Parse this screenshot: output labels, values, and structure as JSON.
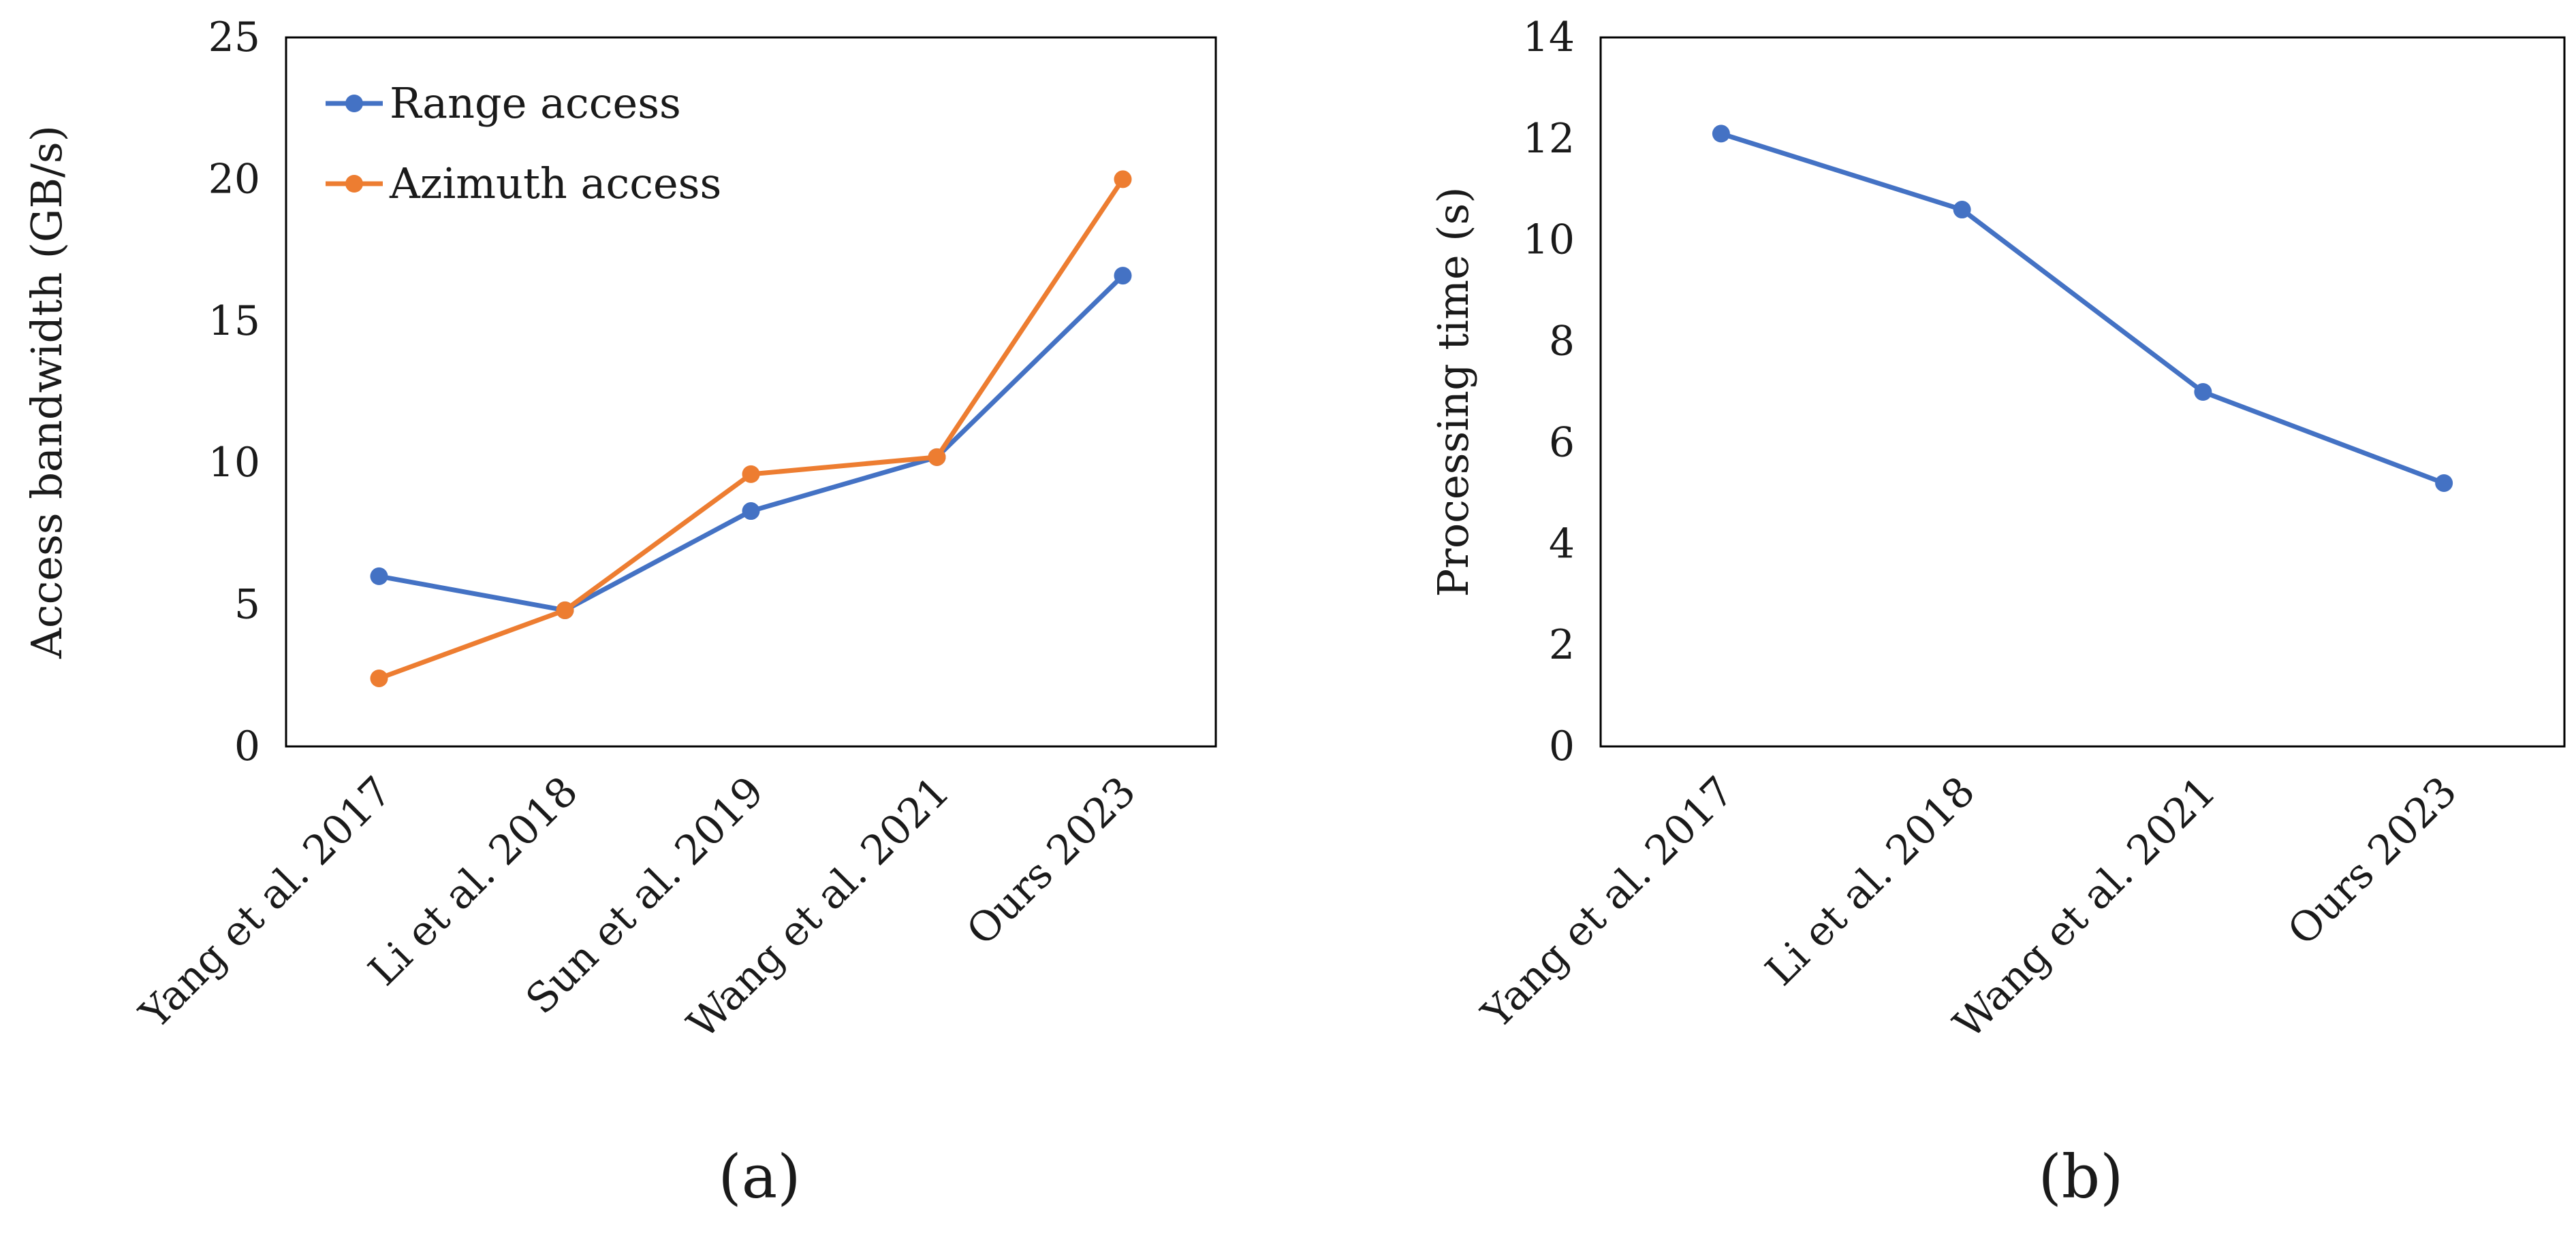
{
  "chart_data": [
    {
      "type": "line",
      "panel_label": "(a)",
      "categories": [
        "Yang et al. 2017",
        "Li et al. 2018",
        "Sun et al. 2019",
        "Wang et al. 2021",
        "Ours 2023"
      ],
      "series": [
        {
          "name": "Range access",
          "color": "#4472c4",
          "values": [
            6.0,
            4.8,
            8.3,
            10.2,
            16.6
          ]
        },
        {
          "name": "Azimuth access",
          "color": "#ed7d31",
          "values": [
            2.4,
            4.8,
            9.6,
            10.2,
            20.0
          ]
        }
      ],
      "ylabel": "Access bandwidth (GB/s)",
      "xlabel": "",
      "ylim": [
        0,
        25
      ],
      "yticks": [
        0,
        5,
        10,
        15,
        20,
        25
      ],
      "grid": false,
      "legend": "top-left"
    },
    {
      "type": "line",
      "panel_label": "(b)",
      "categories": [
        "Yang et al. 2017",
        "Li et al. 2018",
        "Wang et al. 2021",
        "Ours 2023"
      ],
      "series": [
        {
          "name": "Processing time",
          "color": "#4472c4",
          "values": [
            12.1,
            10.6,
            7.0,
            5.2
          ]
        }
      ],
      "ylabel": "Processing time (s)",
      "xlabel": "",
      "ylim": [
        0,
        14
      ],
      "yticks": [
        0,
        2,
        4,
        6,
        8,
        10,
        12,
        14
      ],
      "grid": false,
      "legend": "none"
    }
  ]
}
